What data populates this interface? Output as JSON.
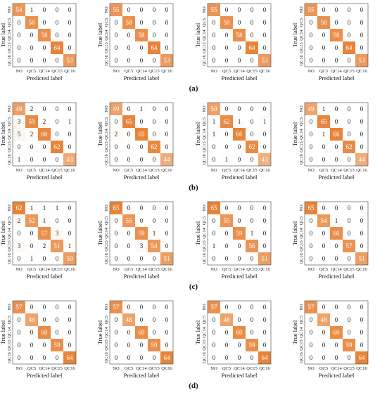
{
  "figure": {
    "classes": [
      "NO",
      "QC5",
      "QC14",
      "QC15",
      "QC16"
    ],
    "xlabel": "Predicted label",
    "ylabel": "True label",
    "colors": {
      "high": "#e8843a",
      "low": "#ffffff",
      "text_dark": "#1a1a1a",
      "text_light": "#ffffff",
      "frame": "#444444"
    }
  },
  "chart_data": [
    {
      "type": "heatmap",
      "row_label": "(a)",
      "panels": [
        {
          "values": [
            [
              54,
              1,
              0,
              0,
              0
            ],
            [
              0,
              58,
              0,
              0,
              0
            ],
            [
              0,
              0,
              58,
              0,
              0
            ],
            [
              0,
              0,
              0,
              64,
              0
            ],
            [
              0,
              0,
              0,
              0,
              53
            ]
          ]
        },
        {
          "values": [
            [
              55,
              0,
              0,
              0,
              0
            ],
            [
              0,
              58,
              0,
              0,
              0
            ],
            [
              0,
              0,
              58,
              0,
              0
            ],
            [
              0,
              0,
              0,
              64,
              0
            ],
            [
              0,
              0,
              0,
              0,
              53
            ]
          ]
        },
        {
          "values": [
            [
              55,
              0,
              0,
              0,
              0
            ],
            [
              0,
              58,
              0,
              0,
              0
            ],
            [
              0,
              0,
              58,
              0,
              0
            ],
            [
              0,
              0,
              0,
              64,
              0
            ],
            [
              0,
              0,
              0,
              0,
              53
            ]
          ]
        },
        {
          "values": [
            [
              55,
              0,
              0,
              0,
              0
            ],
            [
              0,
              58,
              0,
              0,
              0
            ],
            [
              0,
              0,
              58,
              0,
              0
            ],
            [
              0,
              0,
              0,
              64,
              0
            ],
            [
              0,
              0,
              0,
              0,
              53
            ]
          ]
        }
      ]
    },
    {
      "type": "heatmap",
      "row_label": "(b)",
      "panels": [
        {
          "values": [
            [
              48,
              2,
              0,
              0,
              0
            ],
            [
              3,
              59,
              2,
              0,
              1
            ],
            [
              5,
              2,
              60,
              0,
              0
            ],
            [
              0,
              0,
              0,
              62,
              0
            ],
            [
              1,
              0,
              0,
              0,
              43
            ]
          ]
        },
        {
          "values": [
            [
              49,
              0,
              1,
              0,
              0
            ],
            [
              0,
              65,
              0,
              0,
              0
            ],
            [
              2,
              0,
              65,
              0,
              0
            ],
            [
              0,
              0,
              0,
              62,
              0
            ],
            [
              0,
              0,
              0,
              0,
              44
            ]
          ]
        },
        {
          "values": [
            [
              50,
              0,
              0,
              0,
              0
            ],
            [
              1,
              62,
              1,
              0,
              1
            ],
            [
              1,
              0,
              66,
              0,
              0
            ],
            [
              0,
              0,
              0,
              62,
              0
            ],
            [
              0,
              1,
              0,
              0,
              43
            ]
          ]
        },
        {
          "values": [
            [
              49,
              1,
              0,
              0,
              0
            ],
            [
              0,
              65,
              0,
              0,
              0
            ],
            [
              0,
              1,
              66,
              0,
              0
            ],
            [
              0,
              0,
              0,
              62,
              0
            ],
            [
              0,
              0,
              0,
              0,
              44
            ]
          ]
        }
      ]
    },
    {
      "type": "heatmap",
      "row_label": "(c)",
      "panels": [
        {
          "values": [
            [
              62,
              1,
              1,
              1,
              0
            ],
            [
              2,
              52,
              1,
              0,
              0
            ],
            [
              0,
              0,
              57,
              3,
              0
            ],
            [
              3,
              0,
              2,
              51,
              1
            ],
            [
              0,
              1,
              0,
              0,
              50
            ]
          ]
        },
        {
          "values": [
            [
              65,
              0,
              0,
              0,
              0
            ],
            [
              0,
              55,
              0,
              0,
              0
            ],
            [
              0,
              0,
              59,
              1,
              0
            ],
            [
              0,
              0,
              3,
              54,
              0
            ],
            [
              0,
              0,
              0,
              0,
              51
            ]
          ]
        },
        {
          "values": [
            [
              65,
              0,
              0,
              0,
              0
            ],
            [
              0,
              55,
              0,
              0,
              0
            ],
            [
              0,
              0,
              59,
              1,
              0
            ],
            [
              1,
              0,
              0,
              56,
              0
            ],
            [
              0,
              0,
              0,
              0,
              51
            ]
          ]
        },
        {
          "values": [
            [
              65,
              0,
              0,
              0,
              0
            ],
            [
              0,
              54,
              1,
              0,
              0
            ],
            [
              0,
              0,
              60,
              0,
              0
            ],
            [
              0,
              0,
              0,
              57,
              0
            ],
            [
              0,
              0,
              0,
              0,
              51
            ]
          ]
        }
      ]
    },
    {
      "type": "heatmap",
      "row_label": "(d)",
      "panels": [
        {
          "values": [
            [
              57,
              0,
              0,
              0,
              0
            ],
            [
              0,
              48,
              0,
              0,
              0
            ],
            [
              0,
              0,
              60,
              0,
              0
            ],
            [
              0,
              0,
              0,
              59,
              0
            ],
            [
              0,
              0,
              0,
              0,
              64
            ]
          ]
        },
        {
          "values": [
            [
              57,
              0,
              0,
              0,
              0
            ],
            [
              0,
              48,
              0,
              0,
              0
            ],
            [
              0,
              0,
              60,
              0,
              0
            ],
            [
              0,
              0,
              0,
              59,
              0
            ],
            [
              0,
              0,
              0,
              0,
              64
            ]
          ]
        },
        {
          "values": [
            [
              57,
              0,
              0,
              0,
              0
            ],
            [
              0,
              48,
              0,
              0,
              0
            ],
            [
              0,
              0,
              60,
              0,
              0
            ],
            [
              0,
              0,
              0,
              59,
              0
            ],
            [
              0,
              0,
              0,
              0,
              64
            ]
          ]
        },
        {
          "values": [
            [
              57,
              0,
              0,
              0,
              0
            ],
            [
              0,
              48,
              0,
              0,
              0
            ],
            [
              0,
              0,
              60,
              0,
              0
            ],
            [
              0,
              0,
              0,
              59,
              0
            ],
            [
              0,
              0,
              0,
              0,
              64
            ]
          ]
        }
      ]
    }
  ]
}
